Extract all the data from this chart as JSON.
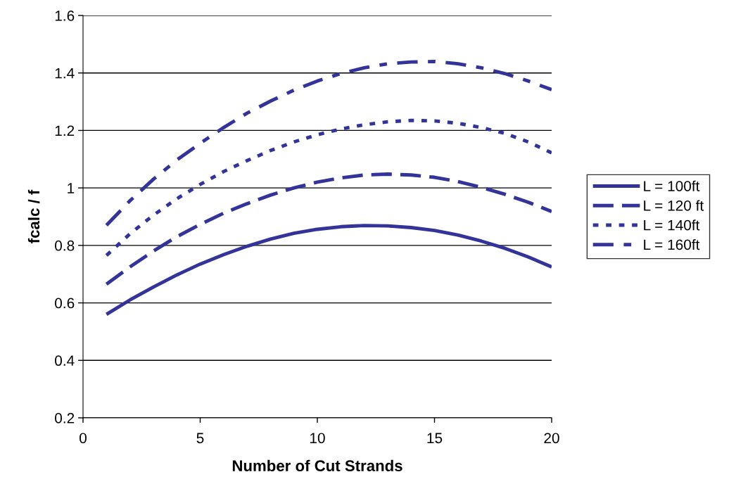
{
  "chart_data": {
    "type": "line",
    "xlabel": "Number of Cut Strands",
    "ylabel": "fcalc / f",
    "x": [
      1,
      2,
      3,
      4,
      5,
      6,
      7,
      8,
      9,
      10,
      11,
      12,
      13,
      14,
      15,
      16,
      17,
      18,
      19,
      20
    ],
    "xlim": [
      0,
      20
    ],
    "xticks": [
      0,
      5,
      10,
      15,
      20
    ],
    "ylim": [
      0.2,
      1.6
    ],
    "yticks": [
      0.2,
      0.4,
      0.6,
      0.8,
      1,
      1.2,
      1.4,
      1.6
    ],
    "grid": "y",
    "legend": "right",
    "marker": "none",
    "series": [
      {
        "name": "L = 100ft",
        "color": "#333399",
        "line_style": "solid",
        "values": [
          0.56,
          0.61,
          0.655,
          0.697,
          0.735,
          0.768,
          0.797,
          0.822,
          0.842,
          0.856,
          0.865,
          0.869,
          0.868,
          0.862,
          0.852,
          0.836,
          0.815,
          0.79,
          0.76,
          0.725
        ]
      },
      {
        "name": "L = 120 ft",
        "color": "#333399",
        "line_style": "dashed",
        "values": [
          0.665,
          0.725,
          0.78,
          0.83,
          0.873,
          0.912,
          0.945,
          0.975,
          1.0,
          1.02,
          1.035,
          1.045,
          1.048,
          1.045,
          1.037,
          1.022,
          1.002,
          0.978,
          0.95,
          0.918
        ]
      },
      {
        "name": "L = 140ft",
        "color": "#333399",
        "line_style": "dotted",
        "values": [
          0.765,
          0.84,
          0.905,
          0.962,
          1.012,
          1.057,
          1.095,
          1.13,
          1.16,
          1.185,
          1.205,
          1.22,
          1.23,
          1.235,
          1.233,
          1.225,
          1.21,
          1.19,
          1.16,
          1.122
        ]
      },
      {
        "name": "L = 160ft",
        "color": "#333399",
        "line_style": "dashdot",
        "values": [
          0.87,
          0.955,
          1.03,
          1.097,
          1.155,
          1.21,
          1.26,
          1.302,
          1.34,
          1.372,
          1.398,
          1.418,
          1.432,
          1.438,
          1.44,
          1.432,
          1.418,
          1.398,
          1.372,
          1.342
        ]
      }
    ]
  }
}
